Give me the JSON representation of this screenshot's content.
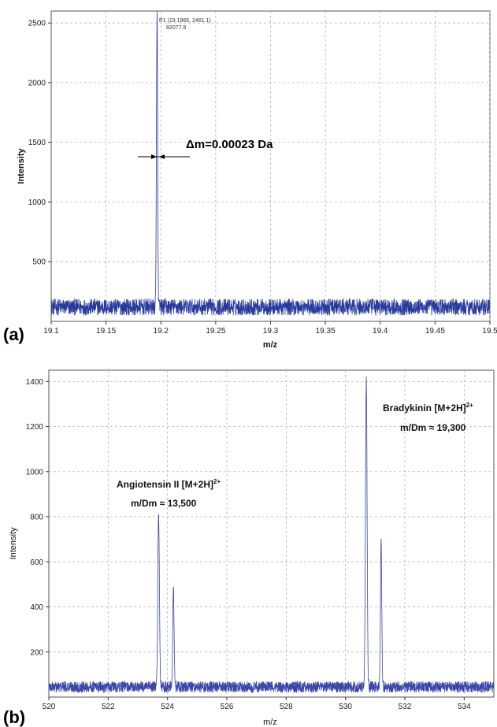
{
  "chart_data": [
    {
      "type": "line",
      "panel_label": "(a)",
      "xlabel": "m/z",
      "ylabel": "Intensity",
      "xlim": [
        19.1,
        19.5
      ],
      "ylim": [
        0,
        2600
      ],
      "x_ticks": [
        19.1,
        19.15,
        19.2,
        19.25,
        19.3,
        19.35,
        19.4,
        19.45,
        19.5
      ],
      "x_tick_labels": [
        "19.1",
        "19.15",
        "19.2",
        "19.25",
        "19.3",
        "19.35",
        "19.4",
        "19.45",
        "19.5"
      ],
      "y_ticks": [
        500,
        1000,
        1500,
        2000,
        2500
      ],
      "y_tick_labels": [
        "500",
        "1000",
        "1500",
        "2000",
        "2500"
      ],
      "grid": true,
      "line_color": "#2a3a9c",
      "noise_baseline": 120,
      "noise_amplitude": 70,
      "peaks": [
        {
          "x": 19.1965,
          "y": 2461,
          "width": 0.0012
        }
      ],
      "annotations": [
        {
          "text": "P1 (19.1965, 2461.1)",
          "x": 19.1965,
          "y": 2461
        },
        {
          "text": "82077.9",
          "x": 19.1965,
          "y": 2461
        },
        {
          "text": "Δm=0.00023 Da",
          "x": 19.205,
          "y": 1380
        }
      ]
    },
    {
      "type": "line",
      "panel_label": "(b)",
      "xlabel": "m/z",
      "ylabel": "Intensity",
      "xlim": [
        520,
        535
      ],
      "ylim": [
        0,
        1450
      ],
      "x_ticks": [
        520,
        522,
        524,
        526,
        528,
        530,
        532,
        534
      ],
      "x_tick_labels": [
        "520",
        "522",
        "524",
        "526",
        "528",
        "530",
        "532",
        "534"
      ],
      "y_ticks": [
        200,
        400,
        600,
        800,
        1000,
        1200,
        1400
      ],
      "y_tick_labels": [
        "200",
        "400",
        "600",
        "800",
        "1000",
        "1200",
        "1400"
      ],
      "grid": true,
      "line_color": "#3a46a8",
      "noise_baseline": 45,
      "noise_amplitude": 25,
      "peaks": [
        {
          "x": 523.7,
          "y": 770,
          "width": 0.06
        },
        {
          "x": 524.2,
          "y": 430,
          "width": 0.05
        },
        {
          "x": 530.7,
          "y": 1370,
          "width": 0.06
        },
        {
          "x": 531.2,
          "y": 640,
          "width": 0.05
        }
      ],
      "annotations": [
        {
          "title": "Angiotensin II [M+2H]",
          "sup": "2+",
          "line2": "m/Dm ≈ 13,500"
        },
        {
          "title": "Bradykinin [M+2H]",
          "sup": "2+",
          "line2": "m/Dm ≈ 19,300"
        }
      ]
    }
  ]
}
